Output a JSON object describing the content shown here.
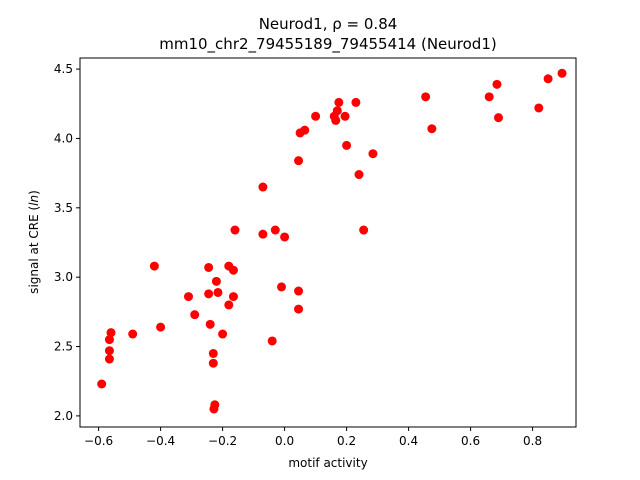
{
  "chart_data": {
    "type": "scatter",
    "title_line1": "Neurod1, ρ = 0.84",
    "title_line2": "mm10_chr2_79455189_79455414 (Neurod1)",
    "xlabel": "motif activity",
    "ylabel_prefix": "signal at CRE (",
    "ylabel_italic": "ln",
    "ylabel_suffix": ")",
    "xlim": [
      -0.66,
      0.94
    ],
    "ylim": [
      1.92,
      4.58
    ],
    "xticks": [
      -0.6,
      -0.4,
      -0.2,
      0.0,
      0.2,
      0.4,
      0.6,
      0.8
    ],
    "xtick_labels": [
      "−0.6",
      "−0.4",
      "−0.2",
      "0.0",
      "0.2",
      "0.4",
      "0.6",
      "0.8"
    ],
    "yticks": [
      2.0,
      2.5,
      3.0,
      3.5,
      4.0,
      4.5
    ],
    "ytick_labels": [
      "2.0",
      "2.5",
      "3.0",
      "3.5",
      "4.0",
      "4.5"
    ],
    "grid": false,
    "marker_color": "#ff0000",
    "points": [
      {
        "x": -0.59,
        "y": 2.23
      },
      {
        "x": -0.56,
        "y": 2.6
      },
      {
        "x": -0.565,
        "y": 2.55
      },
      {
        "x": -0.565,
        "y": 2.47
      },
      {
        "x": -0.565,
        "y": 2.41
      },
      {
        "x": -0.49,
        "y": 2.59
      },
      {
        "x": -0.42,
        "y": 3.08
      },
      {
        "x": -0.4,
        "y": 2.64
      },
      {
        "x": -0.31,
        "y": 2.86
      },
      {
        "x": -0.29,
        "y": 2.73
      },
      {
        "x": -0.245,
        "y": 3.07
      },
      {
        "x": -0.245,
        "y": 2.88
      },
      {
        "x": -0.24,
        "y": 2.66
      },
      {
        "x": -0.23,
        "y": 2.45
      },
      {
        "x": -0.23,
        "y": 2.38
      },
      {
        "x": -0.225,
        "y": 2.08
      },
      {
        "x": -0.228,
        "y": 2.05
      },
      {
        "x": -0.22,
        "y": 2.97
      },
      {
        "x": -0.215,
        "y": 2.89
      },
      {
        "x": -0.2,
        "y": 2.59
      },
      {
        "x": -0.18,
        "y": 3.08
      },
      {
        "x": -0.18,
        "y": 2.8
      },
      {
        "x": -0.165,
        "y": 3.05
      },
      {
        "x": -0.165,
        "y": 2.86
      },
      {
        "x": -0.16,
        "y": 3.34
      },
      {
        "x": -0.07,
        "y": 3.65
      },
      {
        "x": -0.07,
        "y": 3.31
      },
      {
        "x": -0.04,
        "y": 2.54
      },
      {
        "x": -0.03,
        "y": 3.34
      },
      {
        "x": -0.01,
        "y": 2.93
      },
      {
        "x": 0.0,
        "y": 3.29
      },
      {
        "x": 0.045,
        "y": 2.9
      },
      {
        "x": 0.045,
        "y": 2.77
      },
      {
        "x": 0.045,
        "y": 3.84
      },
      {
        "x": 0.05,
        "y": 4.04
      },
      {
        "x": 0.065,
        "y": 4.06
      },
      {
        "x": 0.1,
        "y": 4.16
      },
      {
        "x": 0.16,
        "y": 4.16
      },
      {
        "x": 0.165,
        "y": 4.13
      },
      {
        "x": 0.17,
        "y": 4.2
      },
      {
        "x": 0.175,
        "y": 4.26
      },
      {
        "x": 0.195,
        "y": 4.16
      },
      {
        "x": 0.2,
        "y": 3.95
      },
      {
        "x": 0.23,
        "y": 4.26
      },
      {
        "x": 0.24,
        "y": 3.74
      },
      {
        "x": 0.255,
        "y": 3.34
      },
      {
        "x": 0.285,
        "y": 3.89
      },
      {
        "x": 0.455,
        "y": 4.3
      },
      {
        "x": 0.475,
        "y": 4.07
      },
      {
        "x": 0.66,
        "y": 4.3
      },
      {
        "x": 0.685,
        "y": 4.39
      },
      {
        "x": 0.69,
        "y": 4.15
      },
      {
        "x": 0.82,
        "y": 4.22
      },
      {
        "x": 0.85,
        "y": 4.43
      },
      {
        "x": 0.895,
        "y": 4.47
      }
    ]
  }
}
